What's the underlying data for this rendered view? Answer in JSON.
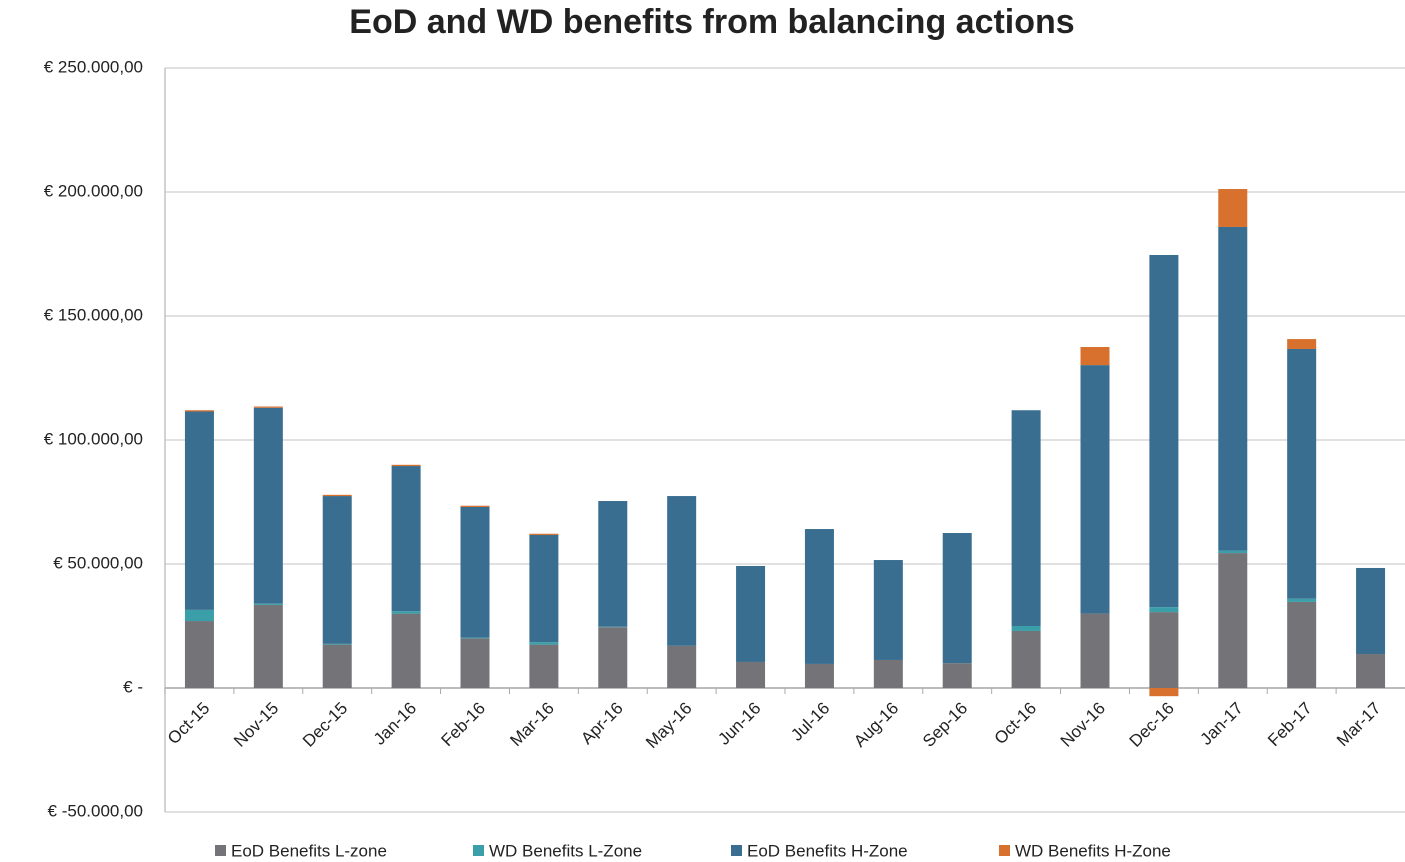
{
  "chart_data": {
    "type": "bar",
    "stacked": true,
    "title": "EoD and WD benefits from balancing actions",
    "categories": [
      "Oct-15",
      "Nov-15",
      "Dec-15",
      "Jan-16",
      "Feb-16",
      "Mar-16",
      "Apr-16",
      "May-16",
      "Jun-16",
      "Jul-16",
      "Aug-16",
      "Sep-16",
      "Oct-16",
      "Nov-16",
      "Dec-16",
      "Jan-17",
      "Feb-17",
      "Mar-17"
    ],
    "series": [
      {
        "name": "EoD Benefits L-zone",
        "color": "#747378",
        "values": [
          27000,
          33500,
          17500,
          30000,
          20000,
          17500,
          24500,
          17000,
          10500,
          9700,
          11300,
          10000,
          23000,
          30000,
          30600,
          54400,
          34700,
          13700
        ]
      },
      {
        "name": "WD Benefits L-Zone",
        "color": "#3a9fa8",
        "values": [
          4500,
          500,
          300,
          1000,
          300,
          1000,
          200,
          0,
          0,
          0,
          0,
          0,
          2000,
          0,
          2000,
          1000,
          1300,
          0
        ]
      },
      {
        "name": "EoD Benefits H-Zone",
        "color": "#3a6e90",
        "values": [
          80000,
          79000,
          59600,
          58500,
          52700,
          43200,
          50700,
          60400,
          38700,
          54400,
          40300,
          52500,
          87000,
          100200,
          142000,
          130500,
          100700,
          34700
        ]
      },
      {
        "name": "WD Benefits H-Zone",
        "color": "#d8702e",
        "values": [
          500,
          500,
          500,
          500,
          500,
          500,
          0,
          0,
          0,
          0,
          0,
          0,
          0,
          7300,
          -3300,
          15300,
          4000,
          0
        ]
      }
    ],
    "ylim": [
      -50000,
      250000
    ],
    "yticks": [
      {
        "value": -50000,
        "label": "€ -50.000,00"
      },
      {
        "value": 0,
        "label": "€ -"
      },
      {
        "value": 50000,
        "label": "€ 50.000,00"
      },
      {
        "value": 100000,
        "label": "€ 100.000,00"
      },
      {
        "value": 150000,
        "label": "€ 150.000,00"
      },
      {
        "value": 200000,
        "label": "€ 200.000,00"
      },
      {
        "value": 250000,
        "label": "€ 250.000,00"
      }
    ],
    "grid": true,
    "legend": "bottom"
  }
}
